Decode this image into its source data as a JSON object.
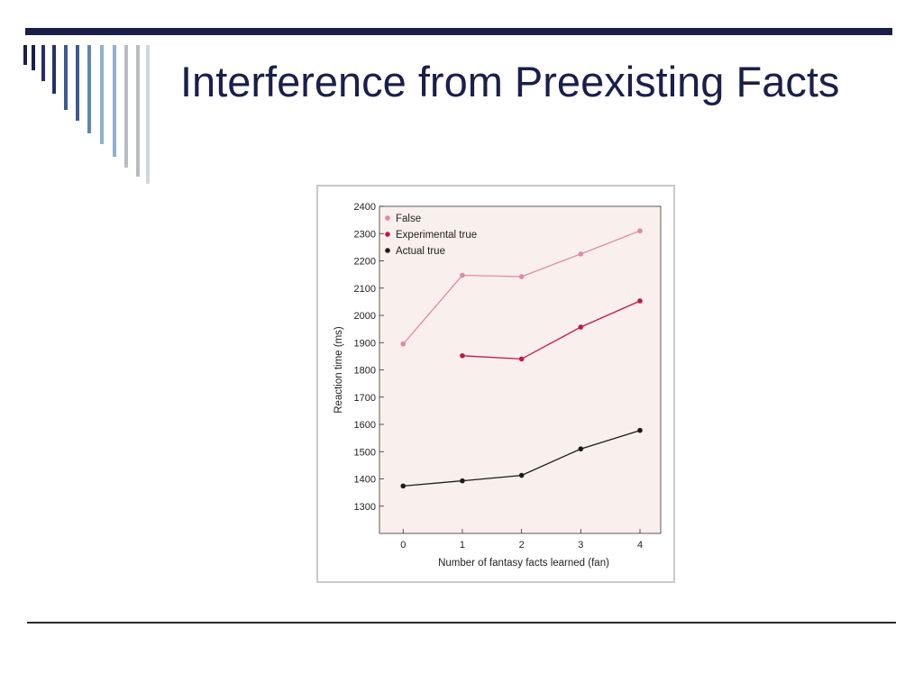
{
  "slide": {
    "title": "Interference from Preexisting Facts"
  },
  "colors": {
    "title": "#1a1f4a",
    "plot_background": "#f9efec",
    "stripe_palette": [
      "#1a1f4a",
      "#24306a",
      "#3c5a95",
      "#5f86b8",
      "#8eb0d3",
      "#b8bcc2",
      "#d3d6da"
    ]
  },
  "chart_data": {
    "type": "line",
    "title": "",
    "xlabel": "Number of fantasy facts learned (fan)",
    "ylabel": "Reaction time (ms)",
    "x": [
      0,
      1,
      2,
      3,
      4
    ],
    "xticks": [
      "0",
      "1",
      "2",
      "3",
      "4"
    ],
    "xlim": [
      -0.4,
      4.35
    ],
    "ylim": [
      1200,
      2400
    ],
    "yticks": [
      "1300",
      "1400",
      "1500",
      "1600",
      "1700",
      "1800",
      "1900",
      "2000",
      "2100",
      "2200",
      "2300",
      "2400"
    ],
    "grid": false,
    "legend_position": "top-left",
    "series": [
      {
        "name": "False",
        "color": "#e08aa0",
        "x": [
          0,
          1,
          2,
          3,
          4
        ],
        "values": [
          1895,
          2147,
          2142,
          2225,
          2310
        ]
      },
      {
        "name": "Experimental true",
        "color": "#c01850",
        "x": [
          1,
          2,
          3,
          4
        ],
        "values": [
          1852,
          1840,
          1957,
          2053
        ]
      },
      {
        "name": "Actual true",
        "color": "#1c1c1c",
        "x": [
          0,
          1,
          2,
          3,
          4
        ],
        "values": [
          1374,
          1393,
          1413,
          1510,
          1578
        ]
      }
    ]
  }
}
